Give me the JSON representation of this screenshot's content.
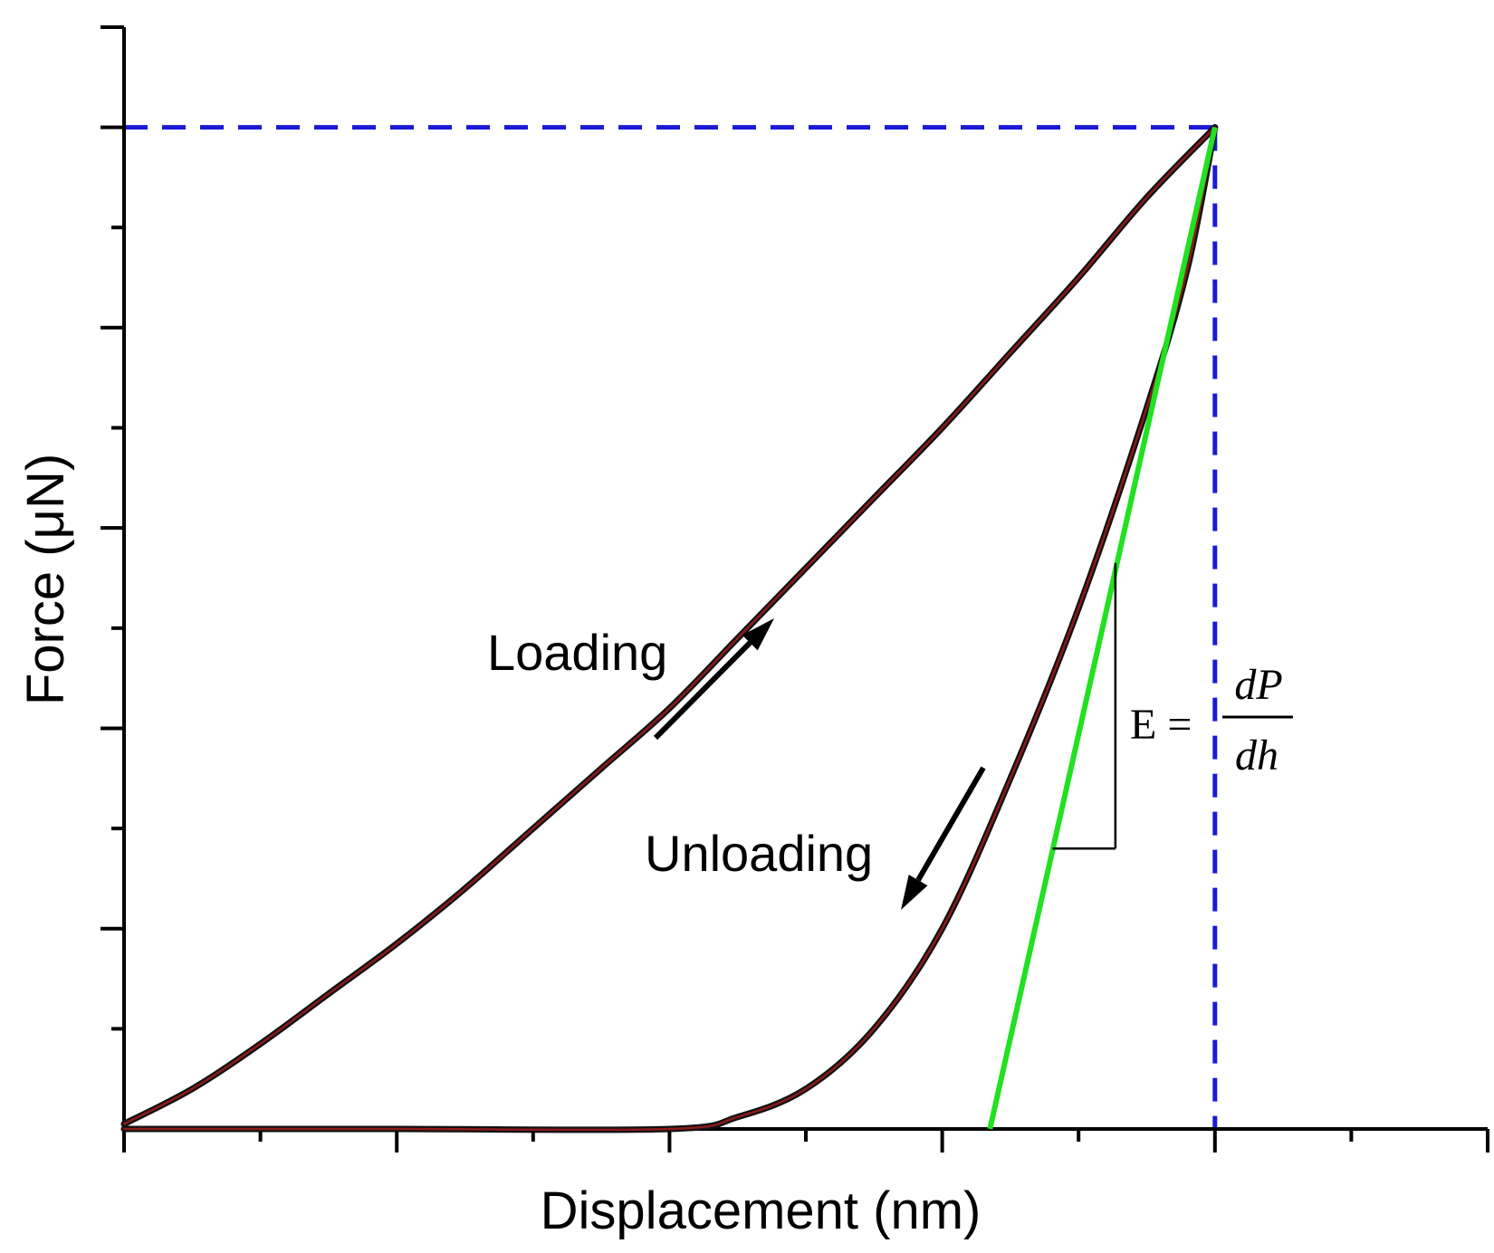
{
  "chart_data": {
    "type": "line",
    "title": "",
    "xlabel": "Displacement (nm)",
    "ylabel": "Force (μN)",
    "xlim": [
      0,
      1
    ],
    "ylim": [
      0,
      1.1
    ],
    "x_ticks_major": [
      0,
      0.2,
      0.4,
      0.6,
      0.8,
      1.0
    ],
    "x_ticks_minor": [
      0.1,
      0.3,
      0.5,
      0.7,
      0.9
    ],
    "y_ticks_major": [
      0.2,
      0.4,
      0.6,
      0.8,
      1.0
    ],
    "y_ticks_minor": [
      0.1,
      0.3,
      0.5,
      0.7,
      0.9
    ],
    "tick_labels_shown": false,
    "grid": false,
    "series": [
      {
        "color": "#8b1a1a",
        "x": [
          0.0,
          0.05,
          0.1,
          0.15,
          0.2,
          0.25,
          0.3,
          0.35,
          0.4,
          0.45,
          0.5,
          0.55,
          0.6,
          0.65,
          0.7,
          0.75,
          0.8
        ],
        "y": [
          0.005,
          0.04,
          0.085,
          0.135,
          0.185,
          0.24,
          0.3,
          0.36,
          0.42,
          0.49,
          0.56,
          0.63,
          0.7,
          0.775,
          0.85,
          0.93,
          1.0
        ]
      },
      {
        "color": "#8b1a1a",
        "x": [
          0.0,
          0.2,
          0.4,
          0.45,
          0.5,
          0.55,
          0.6,
          0.65,
          0.7,
          0.75,
          0.78,
          0.8
        ],
        "y": [
          0.0,
          0.0,
          0.0,
          0.012,
          0.04,
          0.1,
          0.2,
          0.35,
          0.52,
          0.72,
          0.86,
          1.0
        ]
      }
    ],
    "tangent_line": {
      "color": "#22e022",
      "x": [
        0.635,
        0.8
      ],
      "y": [
        0.0,
        1.0
      ]
    },
    "reference_lines": {
      "color": "#1a1ad6",
      "style": "dashed",
      "y": 1.0,
      "x": 0.8
    },
    "slope_triangle": {
      "x": [
        0.681,
        0.727
      ],
      "y": [
        0.28,
        0.565
      ]
    },
    "annotations": {
      "loading": "Loading",
      "unloading": "Unloading",
      "equation_lhs": "E =",
      "equation_num": "dP",
      "equation_den": "dh"
    }
  }
}
